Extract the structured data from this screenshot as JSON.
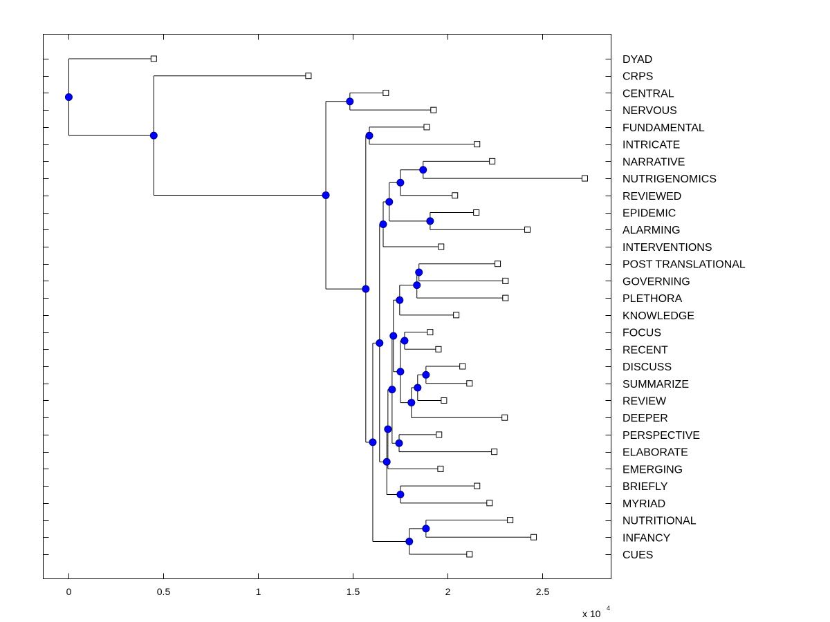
{
  "chart_data": {
    "type": "dendrogram",
    "title": "",
    "xlabel": "",
    "ylabel": "",
    "x_multiplier_label": "x 10",
    "x_multiplier_exponent": "4",
    "xlim": [
      -0.135,
      2.865
    ],
    "xticks": [
      0,
      0.5,
      1,
      1.5,
      2,
      2.5
    ],
    "xtick_labels": [
      "0",
      "0.5",
      "1",
      "1.5",
      "2",
      "2.5"
    ],
    "grid": false,
    "colors": {
      "node_fill": "#0000ff",
      "node_edge": "#000080",
      "line": "#000000",
      "leaf_fill": "#ffffff"
    },
    "leaves": [
      {
        "label": "DYAD",
        "x": 0.449
      },
      {
        "label": "CRPS",
        "x": 1.266
      },
      {
        "label": "CENTRAL",
        "x": 1.675
      },
      {
        "label": "NERVOUS",
        "x": 1.927
      },
      {
        "label": "FUNDAMENTAL",
        "x": 1.891
      },
      {
        "label": "INTRICATE",
        "x": 2.157
      },
      {
        "label": "NARRATIVE",
        "x": 2.237
      },
      {
        "label": "NUTRIGENOMICS",
        "x": 2.726
      },
      {
        "label": "REVIEWED",
        "x": 2.04
      },
      {
        "label": "EPIDEMIC",
        "x": 2.153
      },
      {
        "label": "ALARMING",
        "x": 2.423
      },
      {
        "label": "INTERVENTIONS",
        "x": 1.967
      },
      {
        "label": "POST TRANSLATIONAL",
        "x": 2.266
      },
      {
        "label": "GOVERNING",
        "x": 2.307
      },
      {
        "label": "PLETHORA",
        "x": 2.307
      },
      {
        "label": "KNOWLEDGE",
        "x": 2.047
      },
      {
        "label": "FOCUS",
        "x": 1.909
      },
      {
        "label": "RECENT",
        "x": 1.953
      },
      {
        "label": "DISCUSS",
        "x": 2.08
      },
      {
        "label": "SUMMARIZE",
        "x": 2.117
      },
      {
        "label": "REVIEW",
        "x": 1.982
      },
      {
        "label": "DEEPER",
        "x": 2.303
      },
      {
        "label": "PERSPECTIVE",
        "x": 1.956
      },
      {
        "label": "ELABORATE",
        "x": 2.248
      },
      {
        "label": "EMERGING",
        "x": 1.964
      },
      {
        "label": "BRIEFLY",
        "x": 2.157
      },
      {
        "label": "MYRIAD",
        "x": 2.223
      },
      {
        "label": "NUTRITIONAL",
        "x": 2.332
      },
      {
        "label": "INFANCY",
        "x": 2.456
      },
      {
        "label": "CUES",
        "x": 2.117
      }
    ],
    "nodes": [
      {
        "id": "n1",
        "x": 1.485,
        "children": [
          "L2",
          "L3"
        ]
      },
      {
        "id": "n2",
        "x": 1.588,
        "children": [
          "L4",
          "L5"
        ]
      },
      {
        "id": "n3",
        "x": 1.872,
        "children": [
          "L6",
          "L7"
        ]
      },
      {
        "id": "n4",
        "x": 1.752,
        "children": [
          "n3",
          "L8"
        ]
      },
      {
        "id": "n5",
        "x": 1.909,
        "children": [
          "L9",
          "L10"
        ]
      },
      {
        "id": "n6",
        "x": 1.693,
        "children": [
          "n4",
          "n5"
        ]
      },
      {
        "id": "n7",
        "x": 1.661,
        "children": [
          "n6",
          "L11"
        ]
      },
      {
        "id": "n8",
        "x": 1.85,
        "children": [
          "L12",
          "L13"
        ]
      },
      {
        "id": "n9",
        "x": 1.839,
        "children": [
          "n8",
          "L14"
        ]
      },
      {
        "id": "n10",
        "x": 1.748,
        "children": [
          "n9",
          "L15"
        ]
      },
      {
        "id": "n11",
        "x": 1.774,
        "children": [
          "L16",
          "L17"
        ]
      },
      {
        "id": "n12",
        "x": 1.887,
        "children": [
          "L18",
          "L19"
        ]
      },
      {
        "id": "n13",
        "x": 1.843,
        "children": [
          "n12",
          "L20"
        ]
      },
      {
        "id": "n14",
        "x": 1.81,
        "children": [
          "n13",
          "L21"
        ]
      },
      {
        "id": "n15",
        "x": 1.752,
        "children": [
          "n11",
          "n14"
        ]
      },
      {
        "id": "n16",
        "x": 1.715,
        "children": [
          "n10",
          "n15"
        ]
      },
      {
        "id": "n17",
        "x": 1.745,
        "children": [
          "L22",
          "L23"
        ]
      },
      {
        "id": "n18",
        "x": 1.708,
        "children": [
          "n16",
          "n17"
        ]
      },
      {
        "id": "n19",
        "x": 1.686,
        "children": [
          "n18",
          "L24"
        ]
      },
      {
        "id": "n20",
        "x": 1.752,
        "children": [
          "L25",
          "L26"
        ]
      },
      {
        "id": "n21",
        "x": 1.68,
        "children": [
          "n19",
          "n20"
        ]
      },
      {
        "id": "n22",
        "x": 1.642,
        "children": [
          "n7",
          "n21"
        ]
      },
      {
        "id": "n23",
        "x": 1.887,
        "children": [
          "L27",
          "L28"
        ]
      },
      {
        "id": "n24",
        "x": 1.799,
        "children": [
          "n23",
          "L29"
        ]
      },
      {
        "id": "n25",
        "x": 1.606,
        "children": [
          "n22",
          "n24"
        ]
      },
      {
        "id": "n26",
        "x": 1.569,
        "children": [
          "n2",
          "n25"
        ]
      },
      {
        "id": "n27",
        "x": 1.358,
        "children": [
          "n1",
          "n26"
        ]
      },
      {
        "id": "n28",
        "x": 0.449,
        "children": [
          "L1",
          "n27"
        ]
      },
      {
        "id": "n29",
        "x": 0.0,
        "children": [
          "L0",
          "n28"
        ]
      }
    ]
  }
}
